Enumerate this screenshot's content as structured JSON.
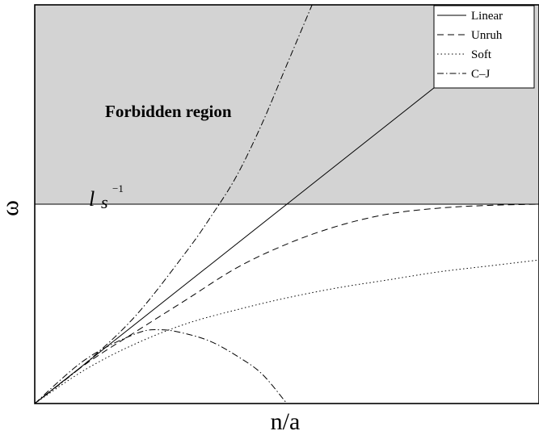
{
  "chart_data": {
    "type": "line",
    "xlabel": "n/a",
    "ylabel": "ω",
    "xlim": [
      0,
      1
    ],
    "ylim": [
      0,
      1
    ],
    "shaded_region": {
      "label": "Forbidden region",
      "y_from": 0.5,
      "y_to": 1.0,
      "color": "#d3d3d3"
    },
    "threshold": {
      "y": 0.5,
      "label_base": "l",
      "label_sub": "s",
      "label_sup": "−1"
    },
    "legend_position": "top-right",
    "series": [
      {
        "name": "Linear",
        "style": "solid",
        "x": [
          0,
          0.5,
          0.9
        ],
        "y": [
          0,
          0.5,
          0.9
        ]
      },
      {
        "name": "Unruh",
        "style": "dashed",
        "x": [
          0,
          0.1,
          0.2,
          0.3,
          0.4,
          0.5,
          0.6,
          0.7,
          0.8,
          0.9,
          1.0
        ],
        "y": [
          0,
          0.098,
          0.18,
          0.26,
          0.34,
          0.4,
          0.445,
          0.475,
          0.49,
          0.497,
          0.5
        ]
      },
      {
        "name": "Soft",
        "style": "dotted",
        "x": [
          0,
          0.1,
          0.2,
          0.3,
          0.4,
          0.5,
          0.6,
          0.7,
          0.8,
          0.9,
          1.0
        ],
        "y": [
          0,
          0.085,
          0.15,
          0.2,
          0.235,
          0.265,
          0.29,
          0.31,
          0.33,
          0.345,
          0.36
        ]
      },
      {
        "name": "C–J",
        "style": "dashdot",
        "x": [
          0,
          0.1,
          0.2,
          0.25,
          0.3,
          0.35,
          0.4,
          0.45,
          0.5
        ],
        "y": [
          0,
          0.11,
          0.175,
          0.185,
          0.175,
          0.155,
          0.12,
          0.075,
          0.0
        ]
      },
      {
        "name": "",
        "style": "dashdot",
        "x": [
          0,
          0.1,
          0.2,
          0.3,
          0.35,
          0.4,
          0.45,
          0.5,
          0.55
        ],
        "y": [
          0,
          0.1,
          0.22,
          0.38,
          0.47,
          0.57,
          0.7,
          0.85,
          1.0
        ]
      }
    ]
  }
}
